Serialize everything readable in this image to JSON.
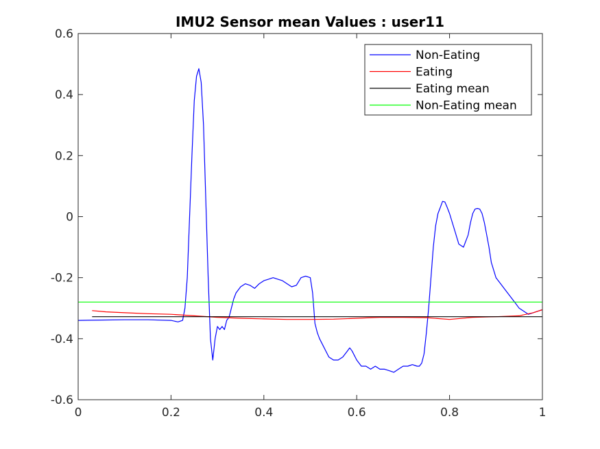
{
  "chart_data": {
    "type": "line",
    "title": "IMU2 Sensor mean Values : user11",
    "xlabel": "",
    "ylabel": "",
    "xlim": [
      0,
      1
    ],
    "ylim": [
      -0.6,
      0.6
    ],
    "x_ticks": [
      0,
      0.2,
      0.4,
      0.6,
      0.8,
      1
    ],
    "x_tick_labels": [
      "0",
      "0.2",
      "0.4",
      "0.6",
      "0.8",
      "1"
    ],
    "y_ticks": [
      -0.6,
      -0.4,
      -0.2,
      0,
      0.2,
      0.4,
      0.6
    ],
    "y_tick_labels": [
      "-0.6",
      "-0.4",
      "-0.2",
      "0",
      "0.2",
      "0.4",
      "0.6"
    ],
    "grid": false,
    "legend_position": "top-right",
    "series": [
      {
        "name": "Non-Eating",
        "color": "#0000ff",
        "x": [
          0,
          0.05,
          0.1,
          0.15,
          0.2,
          0.215,
          0.225,
          0.23,
          0.235,
          0.24,
          0.245,
          0.25,
          0.255,
          0.26,
          0.265,
          0.27,
          0.275,
          0.28,
          0.285,
          0.29,
          0.295,
          0.3,
          0.305,
          0.31,
          0.315,
          0.32,
          0.325,
          0.33,
          0.335,
          0.34,
          0.35,
          0.36,
          0.37,
          0.38,
          0.39,
          0.4,
          0.41,
          0.42,
          0.43,
          0.44,
          0.45,
          0.46,
          0.47,
          0.48,
          0.49,
          0.5,
          0.505,
          0.51,
          0.515,
          0.52,
          0.53,
          0.54,
          0.55,
          0.56,
          0.57,
          0.58,
          0.585,
          0.59,
          0.6,
          0.61,
          0.62,
          0.63,
          0.64,
          0.65,
          0.66,
          0.67,
          0.68,
          0.69,
          0.7,
          0.71,
          0.72,
          0.73,
          0.735,
          0.74,
          0.745,
          0.75,
          0.755,
          0.76,
          0.765,
          0.77,
          0.775,
          0.78,
          0.785,
          0.79,
          0.795,
          0.8,
          0.81,
          0.82,
          0.83,
          0.84,
          0.845,
          0.85,
          0.855,
          0.86,
          0.865,
          0.87,
          0.875,
          0.88,
          0.885,
          0.89,
          0.9,
          0.91,
          0.92,
          0.93,
          0.94,
          0.95,
          0.96,
          0.97,
          0.98,
          0.99,
          1.0
        ],
        "y": [
          -0.34,
          -0.339,
          -0.338,
          -0.338,
          -0.34,
          -0.345,
          -0.34,
          -0.3,
          -0.2,
          0.0,
          0.2,
          0.38,
          0.46,
          0.485,
          0.44,
          0.3,
          0.05,
          -0.2,
          -0.4,
          -0.47,
          -0.4,
          -0.36,
          -0.37,
          -0.36,
          -0.37,
          -0.34,
          -0.33,
          -0.3,
          -0.27,
          -0.25,
          -0.23,
          -0.22,
          -0.225,
          -0.235,
          -0.22,
          -0.21,
          -0.205,
          -0.2,
          -0.205,
          -0.21,
          -0.22,
          -0.23,
          -0.225,
          -0.2,
          -0.195,
          -0.2,
          -0.25,
          -0.35,
          -0.38,
          -0.4,
          -0.43,
          -0.46,
          -0.47,
          -0.47,
          -0.46,
          -0.44,
          -0.43,
          -0.44,
          -0.47,
          -0.49,
          -0.49,
          -0.5,
          -0.49,
          -0.5,
          -0.5,
          -0.505,
          -0.51,
          -0.5,
          -0.49,
          -0.49,
          -0.485,
          -0.49,
          -0.49,
          -0.48,
          -0.45,
          -0.38,
          -0.3,
          -0.2,
          -0.1,
          -0.03,
          0.01,
          0.03,
          0.05,
          0.048,
          0.03,
          0.01,
          -0.04,
          -0.09,
          -0.1,
          -0.06,
          -0.02,
          0.01,
          0.025,
          0.027,
          0.025,
          0.01,
          -0.02,
          -0.06,
          -0.1,
          -0.15,
          -0.2,
          -0.22,
          -0.24,
          -0.26,
          -0.28,
          -0.3,
          -0.31,
          -0.32,
          -0.315,
          -0.31,
          -0.305
        ]
      },
      {
        "name": "Eating",
        "color": "#ff0000",
        "x": [
          0.03,
          0.06,
          0.1,
          0.15,
          0.2,
          0.25,
          0.3,
          0.35,
          0.4,
          0.45,
          0.5,
          0.55,
          0.6,
          0.65,
          0.7,
          0.75,
          0.8,
          0.85,
          0.9,
          0.95,
          0.98,
          1.0
        ],
        "y": [
          -0.308,
          -0.312,
          -0.315,
          -0.318,
          -0.32,
          -0.325,
          -0.33,
          -0.333,
          -0.335,
          -0.337,
          -0.337,
          -0.336,
          -0.333,
          -0.33,
          -0.33,
          -0.331,
          -0.337,
          -0.33,
          -0.328,
          -0.325,
          -0.315,
          -0.305
        ]
      },
      {
        "name": "Eating mean",
        "color": "#000000",
        "x": [
          0.03,
          1.0
        ],
        "y": [
          -0.328,
          -0.328
        ]
      },
      {
        "name": "Non-Eating mean",
        "color": "#00ff00",
        "x": [
          0,
          1.0
        ],
        "y": [
          -0.28,
          -0.28
        ]
      }
    ]
  }
}
